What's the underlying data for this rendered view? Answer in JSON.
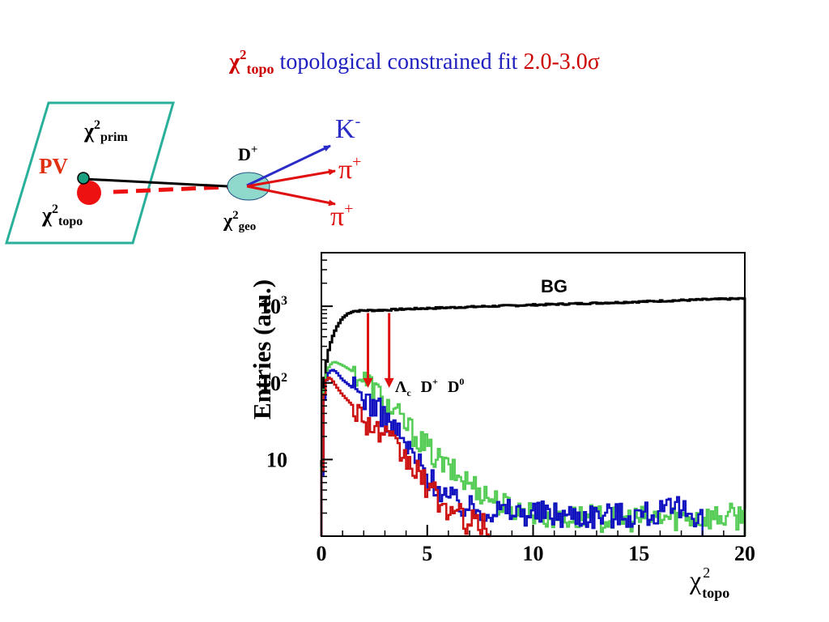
{
  "title": {
    "chi_symbol": "χ",
    "chi_power": "2",
    "chi_subscript": "topo",
    "text": "topological constrained fit",
    "range": "2.0-3.0σ"
  },
  "decay_diagram": {
    "pv_label": "PV",
    "chi2_prim": {
      "symbol": "χ",
      "power": "2",
      "subscript": "prim"
    },
    "chi2_topo": {
      "symbol": "χ",
      "power": "2",
      "subscript": "topo"
    },
    "chi2_geo": {
      "symbol": "χ",
      "power": "2",
      "subscript": "geo"
    },
    "mother": {
      "symbol": "D",
      "charge": "+"
    },
    "daughters": [
      {
        "symbol": "K",
        "charge": "-",
        "color": "#2b2bc8"
      },
      {
        "symbol": "π",
        "charge": "+",
        "color": "#e01010"
      },
      {
        "symbol": "π",
        "charge": "+",
        "color": "#e01010"
      }
    ],
    "colors": {
      "plane_border": "#2ab09a",
      "pv_dot": "#1aa080",
      "pv_label": "#e03010",
      "topo_dot": "#ee1111",
      "vertex_ellipse": "#8fd8cc"
    }
  },
  "chart_data": {
    "type": "line",
    "ylabel": "Entries (a.u.)",
    "xlabel_symbol": "χ",
    "xlabel_power": "2",
    "xlabel_subscript": "topo",
    "x_ticks": [
      "0",
      "5",
      "10",
      "15",
      "20"
    ],
    "y_ticks": [
      {
        "base": "10",
        "exp": "3",
        "value": 1000
      },
      {
        "base": "10",
        "exp": "2",
        "value": 100
      },
      {
        "base": "10",
        "exp": "",
        "value": 10
      }
    ],
    "xlim": [
      0,
      20
    ],
    "ylim": [
      1,
      5000
    ],
    "log_y": true,
    "grid": false,
    "cut_arrows": [
      2.2,
      3.2
    ],
    "annotations": {
      "bg_label": "BG",
      "signal_labels": [
        {
          "base": "Λ",
          "sub": "c",
          "sup": ""
        },
        {
          "base": "D",
          "sub": "",
          "sup": "+"
        },
        {
          "base": "D",
          "sub": "",
          "sup": "0"
        }
      ]
    },
    "series": [
      {
        "color": "#000000",
        "points": [
          [
            0,
            1
          ],
          [
            0.1,
            90
          ],
          [
            0.2,
            150
          ],
          [
            0.3,
            240
          ],
          [
            0.5,
            380
          ],
          [
            0.7,
            520
          ],
          [
            1.0,
            700
          ],
          [
            1.3,
            820
          ],
          [
            1.5,
            860
          ],
          [
            2.0,
            880
          ],
          [
            3.0,
            890
          ],
          [
            4.0,
            920
          ],
          [
            6.0,
            960
          ],
          [
            8.0,
            1000
          ],
          [
            10.0,
            1040
          ],
          [
            12.0,
            1080
          ],
          [
            14.0,
            1120
          ],
          [
            16.0,
            1170
          ],
          [
            18.0,
            1220
          ],
          [
            20.0,
            1260
          ]
        ]
      },
      {
        "color": "#55cc55",
        "points": [
          [
            0,
            1
          ],
          [
            0.1,
            60
          ],
          [
            0.2,
            110
          ],
          [
            0.3,
            150
          ],
          [
            0.4,
            170
          ],
          [
            0.6,
            190
          ],
          [
            0.8,
            180
          ],
          [
            1.0,
            170
          ],
          [
            1.5,
            140
          ],
          [
            2.0,
            110
          ],
          [
            2.5,
            85
          ],
          [
            3.0,
            55
          ],
          [
            3.5,
            40
          ],
          [
            4.0,
            28
          ],
          [
            4.5,
            20
          ],
          [
            5.0,
            14
          ],
          [
            5.5,
            10
          ],
          [
            6.0,
            7.5
          ],
          [
            6.5,
            6
          ],
          [
            7.0,
            5
          ],
          [
            7.5,
            4
          ],
          [
            8.0,
            3.2
          ],
          [
            8.5,
            2.6
          ],
          [
            9.0,
            2.3
          ],
          [
            10.0,
            2.0
          ],
          [
            11.0,
            1.8
          ],
          [
            13.0,
            1.7
          ],
          [
            15.0,
            1.7
          ],
          [
            17.0,
            1.8
          ],
          [
            20.0,
            1.8
          ]
        ]
      },
      {
        "color": "#1010c0",
        "points": [
          [
            0,
            1
          ],
          [
            0.1,
            40
          ],
          [
            0.2,
            90
          ],
          [
            0.3,
            130
          ],
          [
            0.5,
            150
          ],
          [
            0.7,
            140
          ],
          [
            1.0,
            110
          ],
          [
            1.5,
            85
          ],
          [
            2.0,
            65
          ],
          [
            2.5,
            50
          ],
          [
            3.0,
            35
          ],
          [
            3.5,
            25
          ],
          [
            4.0,
            15
          ],
          [
            4.5,
            10
          ],
          [
            5.0,
            6
          ],
          [
            5.5,
            4.5
          ],
          [
            6.0,
            3.2
          ],
          [
            6.5,
            2.6
          ],
          [
            7.0,
            2.3
          ],
          [
            8.0,
            2.2
          ],
          [
            9.0,
            2.1
          ],
          [
            10.0,
            2.0
          ],
          [
            12.0,
            1.9
          ],
          [
            14.0,
            1.9
          ],
          [
            16.0,
            2.0
          ],
          [
            17.0,
            2.2
          ],
          [
            18.0,
            1.9
          ]
        ]
      },
      {
        "color": "#cc1010",
        "points": [
          [
            0,
            1
          ],
          [
            0.1,
            50
          ],
          [
            0.2,
            100
          ],
          [
            0.3,
            120
          ],
          [
            0.5,
            110
          ],
          [
            0.7,
            90
          ],
          [
            1.0,
            70
          ],
          [
            1.5,
            50
          ],
          [
            2.0,
            35
          ],
          [
            2.5,
            25
          ],
          [
            3.0,
            20
          ],
          [
            3.5,
            14
          ],
          [
            4.0,
            10
          ],
          [
            4.5,
            7
          ],
          [
            5.0,
            4.5
          ],
          [
            5.5,
            3.0
          ],
          [
            6.0,
            2.2
          ],
          [
            6.5,
            1.8
          ],
          [
            7.0,
            1.5
          ],
          [
            8.0,
            1.3
          ]
        ]
      }
    ]
  }
}
